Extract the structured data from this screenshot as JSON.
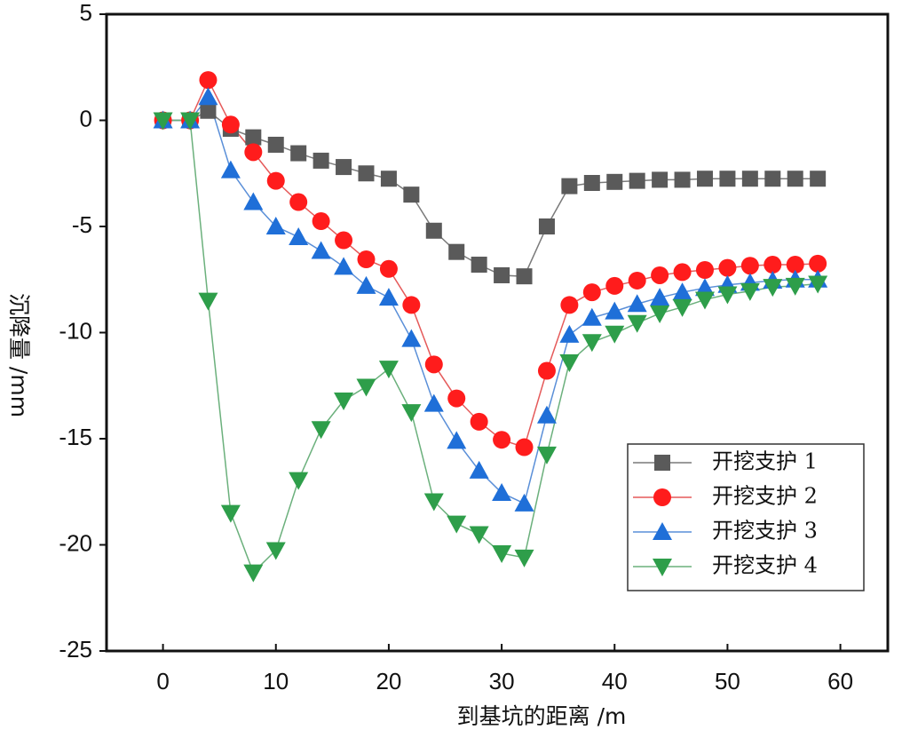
{
  "chart_data": {
    "type": "line",
    "x_label": "到基坑的距离 /m",
    "y_label": "沉降量 /mm",
    "x": [
      0,
      2.4,
      4,
      6,
      8,
      10,
      12,
      14,
      16,
      18,
      20,
      22,
      24,
      26,
      28,
      30,
      32,
      34,
      36,
      38,
      40,
      42,
      44,
      46,
      48,
      50,
      52,
      54,
      56,
      58
    ],
    "series": [
      {
        "name": "开挖支护 1",
        "color": "#5a5a5a",
        "line_color": "#7a7a7a",
        "marker": "square",
        "values": [
          0,
          0,
          0.45,
          -0.4,
          -0.8,
          -1.15,
          -1.55,
          -1.9,
          -2.2,
          -2.5,
          -2.75,
          -3.5,
          -5.2,
          -6.2,
          -6.8,
          -7.3,
          -7.35,
          -5.0,
          -3.1,
          -2.95,
          -2.9,
          -2.85,
          -2.8,
          -2.8,
          -2.75,
          -2.75,
          -2.75,
          -2.75,
          -2.75,
          -2.75
        ]
      },
      {
        "name": "开挖支护 2",
        "color": "#ff1c1c",
        "line_color": "#e55a5a",
        "marker": "circle",
        "values": [
          0,
          0,
          1.9,
          -0.2,
          -1.5,
          -2.85,
          -3.85,
          -4.75,
          -5.65,
          -6.55,
          -7.0,
          -8.7,
          -11.5,
          -13.1,
          -14.2,
          -15.05,
          -15.4,
          -11.8,
          -8.7,
          -8.1,
          -7.8,
          -7.55,
          -7.3,
          -7.15,
          -7.05,
          -6.95,
          -6.85,
          -6.8,
          -6.8,
          -6.75
        ]
      },
      {
        "name": "开挖支护 3",
        "color": "#1f6fd8",
        "line_color": "#5a8fd8",
        "marker": "triangle-up",
        "values": [
          0,
          0,
          1.1,
          -2.35,
          -3.85,
          -5.0,
          -5.5,
          -6.15,
          -6.9,
          -7.8,
          -8.35,
          -10.3,
          -13.35,
          -15.1,
          -16.5,
          -17.55,
          -18.05,
          -13.9,
          -10.1,
          -9.3,
          -9.0,
          -8.65,
          -8.35,
          -8.1,
          -7.9,
          -7.75,
          -7.65,
          -7.55,
          -7.5,
          -7.5
        ]
      },
      {
        "name": "开挖支护 4",
        "color": "#2e9e4a",
        "line_color": "#6bb07c",
        "marker": "triangle-down",
        "values": [
          0,
          0,
          -8.5,
          -18.5,
          -21.3,
          -20.25,
          -16.95,
          -14.55,
          -13.2,
          -12.55,
          -11.7,
          -13.75,
          -17.95,
          -19.0,
          -19.5,
          -20.4,
          -20.6,
          -15.75,
          -11.4,
          -10.45,
          -10.05,
          -9.55,
          -9.1,
          -8.8,
          -8.45,
          -8.2,
          -8.05,
          -7.85,
          -7.8,
          -7.7
        ]
      }
    ],
    "xlim": [
      -5,
      64.2
    ],
    "ylim": [
      -25,
      5
    ],
    "xticks": [
      0,
      10,
      20,
      30,
      40,
      50,
      60
    ],
    "yticks": [
      5,
      0,
      -5,
      -10,
      -15,
      -20,
      -25
    ],
    "legend": "lower right"
  }
}
